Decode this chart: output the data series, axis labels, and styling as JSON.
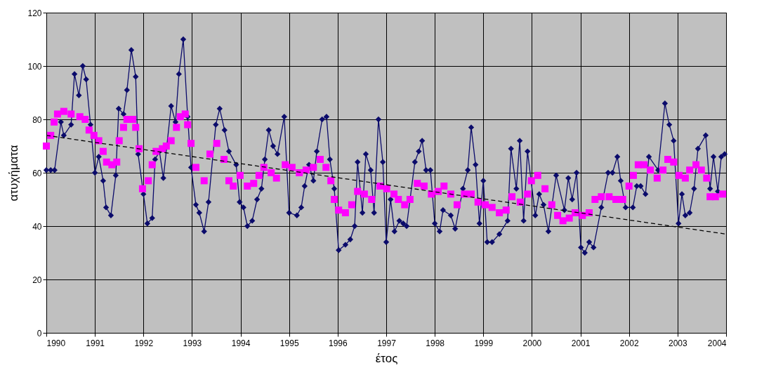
{
  "chart_data": {
    "type": "line",
    "xlabel": "έτος",
    "ylabel": "ατυχήματα",
    "xlim": [
      1990,
      2004
    ],
    "xticks": [
      1990,
      1991,
      1992,
      1993,
      1994,
      1995,
      1996,
      1997,
      1998,
      1999,
      2000,
      2001,
      2002,
      2003,
      2004
    ],
    "ylim": [
      0,
      120
    ],
    "yticks": [
      0,
      20,
      40,
      60,
      80,
      100,
      120
    ],
    "grid": true,
    "series": [
      {
        "color": "#0b0b6b",
        "marker": "diamond",
        "line_style": "solid",
        "x": [
          1990.0,
          1990.09,
          1990.17,
          1990.3,
          1990.36,
          1990.51,
          1990.58,
          1990.67,
          1990.75,
          1990.82,
          1990.91,
          1991.0,
          1991.08,
          1991.17,
          1991.23,
          1991.33,
          1991.43,
          1991.49,
          1991.59,
          1991.66,
          1991.75,
          1991.84,
          1991.89,
          1992.0,
          1992.08,
          1992.18,
          1992.24,
          1992.33,
          1992.41,
          1992.57,
          1992.66,
          1992.73,
          1992.82,
          1992.91,
          1992.98,
          1993.08,
          1993.15,
          1993.25,
          1993.34,
          1993.49,
          1993.57,
          1993.67,
          1993.76,
          1993.91,
          1993.98,
          1994.06,
          1994.14,
          1994.24,
          1994.34,
          1994.43,
          1994.5,
          1994.58,
          1994.67,
          1994.76,
          1994.9,
          1995.0,
          1995.16,
          1995.25,
          1995.32,
          1995.41,
          1995.5,
          1995.57,
          1995.68,
          1995.77,
          1995.84,
          1995.93,
          1996.02,
          1996.16,
          1996.26,
          1996.35,
          1996.41,
          1996.51,
          1996.58,
          1996.68,
          1996.75,
          1996.84,
          1996.93,
          1997.0,
          1997.09,
          1997.17,
          1997.27,
          1997.35,
          1997.42,
          1997.59,
          1997.67,
          1997.74,
          1997.82,
          1997.91,
          1998.0,
          1998.1,
          1998.17,
          1998.33,
          1998.42,
          1998.58,
          1998.68,
          1998.75,
          1998.84,
          1998.92,
          1999.0,
          1999.08,
          1999.18,
          1999.33,
          1999.5,
          1999.57,
          1999.68,
          1999.75,
          1999.83,
          1999.91,
          2000.07,
          2000.15,
          2000.24,
          2000.34,
          2000.5,
          2000.67,
          2000.75,
          2000.83,
          2000.92,
          2001.01,
          2001.09,
          2001.18,
          2001.27,
          2001.43,
          2001.57,
          2001.66,
          2001.76,
          2001.83,
          2001.93,
          2002.08,
          2002.16,
          2002.24,
          2002.34,
          2002.41,
          2002.6,
          2002.74,
          2002.83,
          2002.92,
          2003.02,
          2003.09,
          2003.16,
          2003.25,
          2003.34,
          2003.42,
          2003.58,
          2003.67,
          2003.74,
          2003.83,
          2003.9,
          2003.97
        ],
        "values": [
          61,
          61,
          61,
          79,
          74,
          78,
          97,
          89,
          100,
          95,
          78,
          60,
          66,
          57,
          47,
          44,
          59,
          84,
          82,
          91,
          106,
          96,
          67,
          52,
          41,
          43,
          65,
          68,
          58,
          85,
          79,
          97,
          110,
          81,
          62,
          48,
          45,
          38,
          49,
          78,
          84,
          76,
          68,
          63,
          49,
          47,
          40,
          42,
          50,
          54,
          65,
          76,
          70,
          67,
          81,
          45,
          44,
          47,
          55,
          63,
          57,
          68,
          80,
          81,
          65,
          54,
          31,
          33,
          35,
          40,
          64,
          45,
          67,
          61,
          45,
          80,
          64,
          34,
          50,
          38,
          42,
          41,
          40,
          64,
          68,
          72,
          61,
          61,
          41,
          38,
          46,
          44,
          39,
          54,
          61,
          77,
          63,
          41,
          57,
          34,
          34,
          37,
          42,
          69,
          54,
          72,
          42,
          68,
          44,
          52,
          48,
          38,
          59,
          46,
          58,
          50,
          60,
          32,
          30,
          34,
          32,
          47,
          60,
          60,
          66,
          57,
          47,
          47,
          55,
          55,
          52,
          66,
          61,
          86,
          78,
          72,
          41,
          52,
          44,
          45,
          54,
          69,
          74,
          54,
          66,
          53,
          66,
          67
        ]
      },
      {
        "type": "scatter",
        "color": "#ff00ff",
        "marker": "square",
        "x": [
          1990.0,
          1990.09,
          1990.16,
          1990.23,
          1990.36,
          1990.51,
          1990.69,
          1990.8,
          1990.88,
          1990.98,
          1991.08,
          1991.17,
          1991.24,
          1991.35,
          1991.45,
          1991.5,
          1991.59,
          1991.66,
          1991.78,
          1991.84,
          1991.91,
          1991.98,
          1992.1,
          1992.18,
          1992.26,
          1992.39,
          1992.47,
          1992.57,
          1992.68,
          1992.76,
          1992.86,
          1992.91,
          1992.98,
          1993.08,
          1993.25,
          1993.37,
          1993.51,
          1993.66,
          1993.76,
          1993.85,
          1993.99,
          1994.14,
          1994.27,
          1994.38,
          1994.48,
          1994.63,
          1994.74,
          1994.92,
          1995.06,
          1995.21,
          1995.35,
          1995.5,
          1995.64,
          1995.76,
          1995.86,
          1995.93,
          1996.02,
          1996.16,
          1996.29,
          1996.41,
          1996.55,
          1996.7,
          1996.87,
          1997.01,
          1997.16,
          1997.25,
          1997.38,
          1997.49,
          1997.64,
          1997.78,
          1997.93,
          1998.07,
          1998.19,
          1998.33,
          1998.46,
          1998.61,
          1998.75,
          1998.89,
          1999.04,
          1999.18,
          1999.33,
          1999.47,
          1999.59,
          1999.76,
          1999.91,
          1999.99,
          2000.12,
          2000.27,
          2000.41,
          2000.53,
          2000.64,
          2000.77,
          2000.89,
          2001.04,
          2001.18,
          2001.3,
          2001.43,
          2001.59,
          2001.73,
          2001.87,
          2002.0,
          2002.09,
          2002.19,
          2002.31,
          2002.44,
          2002.58,
          2002.7,
          2002.8,
          2002.92,
          2003.03,
          2003.16,
          2003.25,
          2003.38,
          2003.49,
          2003.6,
          2003.67,
          2003.78,
          2003.93
        ],
        "values": [
          70,
          74,
          79,
          82,
          83,
          82,
          81,
          80,
          76,
          74,
          72,
          68,
          64,
          63,
          64,
          72,
          77,
          80,
          80,
          77,
          69,
          54,
          57,
          63,
          68,
          69,
          70,
          72,
          77,
          81,
          82,
          78,
          71,
          62,
          57,
          67,
          71,
          65,
          57,
          55,
          59,
          55,
          56,
          59,
          62,
          60,
          58,
          63,
          62,
          60,
          61,
          62,
          65,
          62,
          57,
          50,
          46,
          45,
          48,
          53,
          52,
          50,
          55,
          54,
          52,
          50,
          48,
          50,
          56,
          55,
          52,
          53,
          55,
          52,
          48,
          52,
          52,
          49,
          48,
          47,
          45,
          46,
          51,
          49,
          52,
          57,
          59,
          54,
          48,
          44,
          42,
          43,
          45,
          44,
          45,
          50,
          51,
          51,
          50,
          50,
          55,
          59,
          63,
          63,
          61,
          58,
          61,
          65,
          64,
          59,
          58,
          61,
          63,
          61,
          58,
          51,
          51,
          52
        ]
      },
      {
        "color": "#000000",
        "marker": "none",
        "line_style": "dashed",
        "x": [
          1990,
          2004
        ],
        "values": [
          74,
          37
        ]
      }
    ]
  }
}
